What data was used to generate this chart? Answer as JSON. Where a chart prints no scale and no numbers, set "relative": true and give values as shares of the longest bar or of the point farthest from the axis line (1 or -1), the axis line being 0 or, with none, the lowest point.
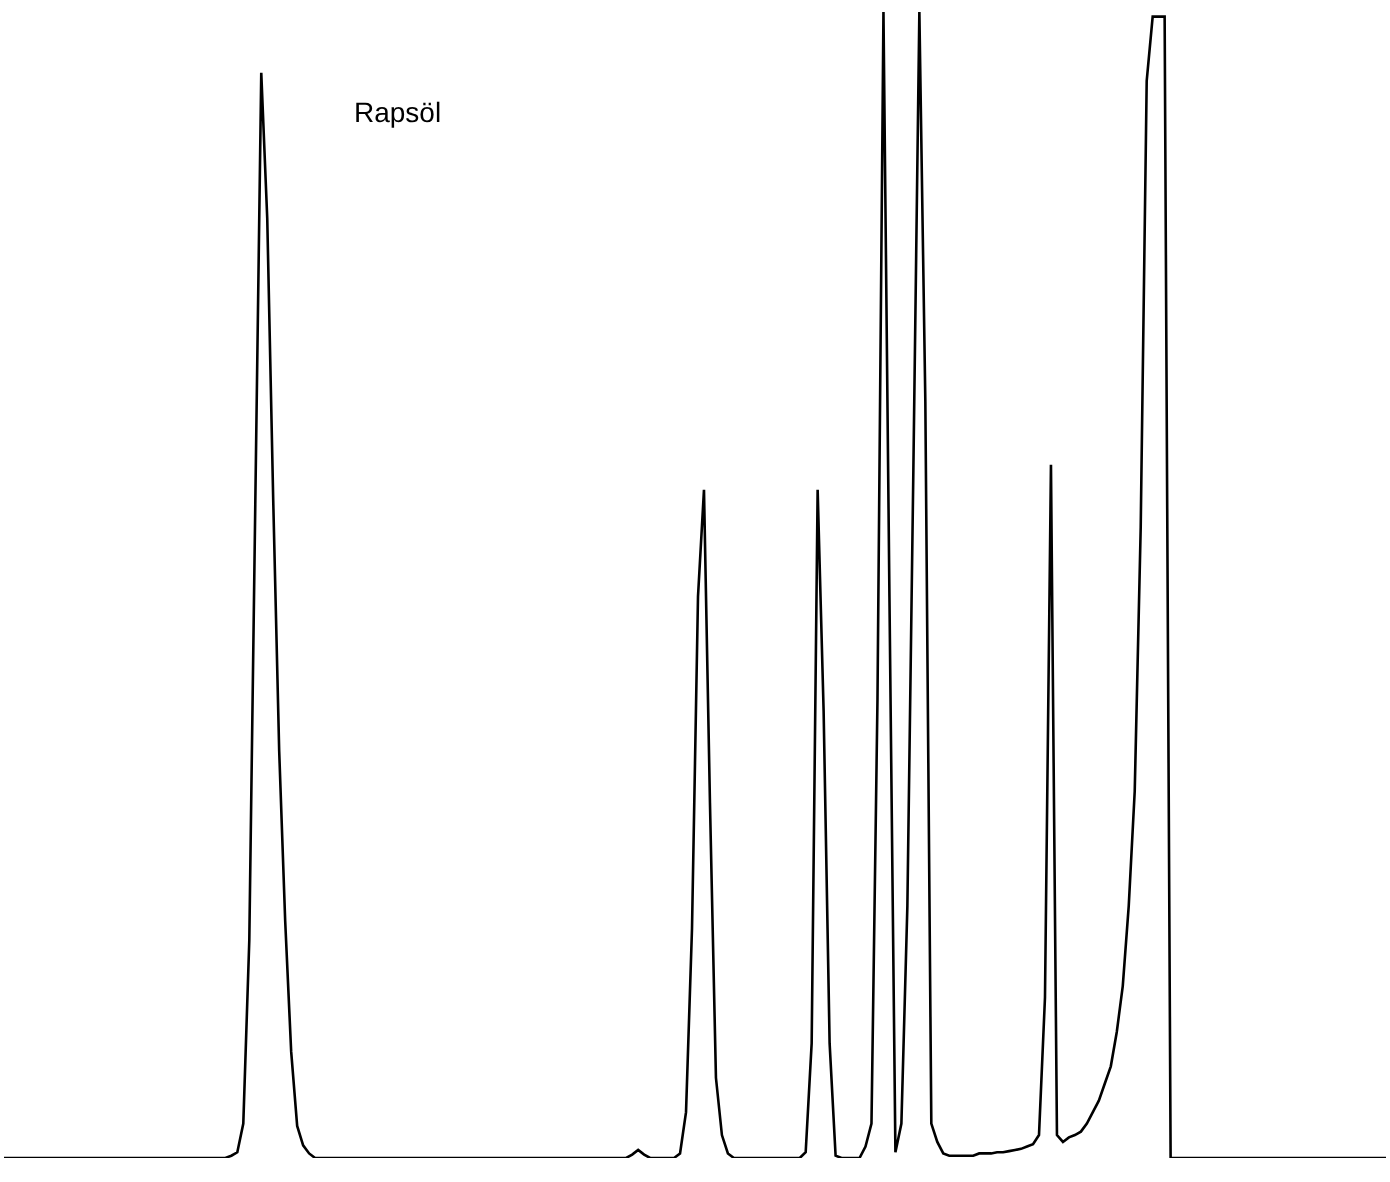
{
  "chart_data": {
    "type": "line",
    "relative": true,
    "annotations": [
      "Rapsöl"
    ],
    "categories": [
      null,
      null,
      null,
      null,
      null,
      null,
      null,
      null,
      null,
      null,
      null,
      null,
      null,
      null,
      null,
      null,
      null,
      null,
      null,
      null,
      null,
      null,
      null,
      null,
      null,
      null,
      null,
      null,
      null,
      null,
      null,
      null,
      null,
      null,
      null,
      null,
      null,
      null,
      null,
      null,
      null,
      null,
      null,
      null,
      null,
      null,
      null,
      null,
      null,
      null,
      null,
      null,
      null,
      null,
      null,
      null,
      null,
      null,
      null,
      null,
      null,
      null,
      null,
      null,
      null,
      null,
      null,
      null,
      null,
      null,
      null,
      null,
      null,
      null,
      null,
      null,
      null,
      null,
      null,
      null,
      null,
      null,
      null,
      null,
      null,
      null,
      null,
      null,
      null,
      null,
      null,
      null,
      null,
      null,
      null,
      null,
      null,
      null,
      null,
      null,
      null,
      null,
      null,
      null,
      null,
      null,
      null,
      null,
      null,
      null,
      null,
      null,
      null,
      null,
      null,
      null,
      null,
      null,
      null,
      null,
      null,
      null,
      null,
      null,
      null,
      null,
      null,
      null,
      null,
      null,
      null,
      null,
      null,
      null,
      null,
      null,
      null,
      null,
      null,
      null,
      null,
      null,
      null,
      null,
      null,
      null,
      null,
      null,
      null,
      null,
      null,
      null,
      null,
      null,
      null,
      null,
      null,
      null,
      null,
      null,
      null,
      null,
      null,
      null,
      null,
      null,
      null,
      null,
      null,
      null,
      null,
      null,
      null,
      null,
      null,
      null,
      null,
      null,
      null,
      null,
      null,
      null,
      null,
      null,
      null,
      null,
      null,
      null,
      null,
      null,
      null,
      null,
      null,
      null,
      null,
      null,
      null,
      null,
      null,
      null,
      null,
      null,
      null,
      null,
      null,
      null,
      null,
      null,
      null,
      null,
      null,
      null,
      null,
      null,
      null,
      null,
      null,
      null,
      null,
      null,
      null,
      null,
      null,
      null,
      null,
      null,
      null,
      null,
      null,
      null,
      null,
      null
    ],
    "series": [
      {
        "color": "#000000",
        "values": [
          0,
          0,
          0,
          0,
          0,
          0,
          0,
          0,
          0,
          0,
          0,
          0,
          0,
          0,
          0,
          0,
          0,
          0,
          0,
          0,
          0,
          0,
          0,
          0,
          0,
          0,
          0,
          0,
          0,
          0,
          0,
          0,
          0,
          0,
          0,
          0,
          0,
          0,
          0.002,
          0.005,
          0.03,
          0.19,
          0.57,
          0.947,
          0.82,
          0.574,
          0.355,
          0.207,
          0.093,
          0.028,
          0.011,
          0.004,
          0,
          0,
          0,
          0,
          0,
          0,
          0,
          0,
          0,
          0,
          0,
          0,
          0,
          0,
          0,
          0,
          0,
          0,
          0,
          0,
          0,
          0,
          0,
          0,
          0,
          0,
          0,
          0,
          0,
          0,
          0,
          0,
          0,
          0,
          0,
          0,
          0,
          0,
          0,
          0,
          0,
          0,
          0,
          0,
          0,
          0,
          0,
          0,
          0,
          0,
          0,
          0,
          0,
          0.003,
          0.007,
          0.003,
          0,
          0,
          0,
          0,
          0,
          0.004,
          0.04,
          0.2,
          0.49,
          0.583,
          0.31,
          0.07,
          0.02,
          0.004,
          0,
          0,
          0,
          0,
          0,
          0,
          0,
          0,
          0,
          0,
          0,
          0,
          0.005,
          0.1,
          0.583,
          0.39,
          0.1,
          0.002,
          0,
          0,
          0,
          0,
          0.01,
          0.03,
          0.4,
          1,
          0.49,
          0.005,
          0.03,
          0.22,
          0.6,
          1,
          0.66,
          0.03,
          0.014,
          0.004,
          0.002,
          0.002,
          0.002,
          0.002,
          0.002,
          0.004,
          0.004,
          0.004,
          0.005,
          0.005,
          0.006,
          0.007,
          0.008,
          0.01,
          0.012,
          0.02,
          0.14,
          0.605,
          0.02,
          0.014,
          0.018,
          0.02,
          0.023,
          0.03,
          0.04,
          0.05,
          0.065,
          0.08,
          0.11,
          0.15,
          0.22,
          0.32,
          0.55,
          0.94,
          0.996,
          0.996,
          0.996,
          0,
          0,
          0,
          0,
          0,
          0,
          0,
          0,
          0,
          0,
          0,
          0,
          0,
          0,
          0,
          0,
          0,
          0,
          0,
          0,
          0,
          0,
          0,
          0,
          0,
          0,
          0,
          0,
          0,
          0,
          0,
          0,
          0,
          0,
          0,
          0,
          0
        ]
      }
    ]
  }
}
